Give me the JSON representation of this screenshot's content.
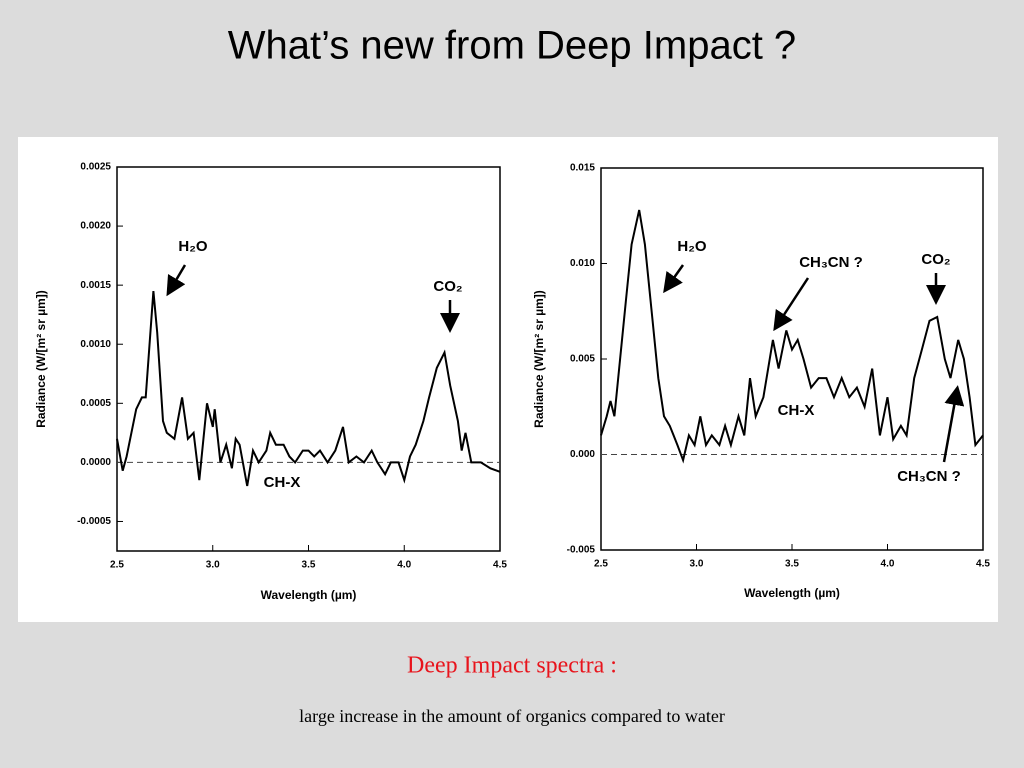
{
  "slide": {
    "title": "What’s new from Deep Impact ?",
    "caption": "Deep Impact spectra :",
    "subcaption": "large increase in the amount of organics compared to water"
  },
  "chart_data": [
    {
      "type": "line",
      "xlabel": "Wavelength (µm)",
      "ylabel": "Radiance (W/[m² sr µm])",
      "color": "#000000",
      "xlim": [
        2.5,
        4.5
      ],
      "xticks": [
        2.5,
        {
          "value": 3,
          "label": "3.0"
        },
        3.5,
        {
          "value": 4,
          "label": "4.0"
        },
        4.5
      ],
      "ylim": [
        -0.00075,
        0.0025
      ],
      "yticks": [
        {
          "value": -0.0005,
          "label": "-0.0005"
        },
        {
          "value": 0,
          "label": "0.0000"
        },
        0.0005,
        {
          "value": 0.001,
          "label": "0.0010"
        },
        0.0015,
        {
          "value": 0.002,
          "label": "0.0020"
        },
        0.0025
      ],
      "reference_line": 0,
      "annotations": [
        "H₂O",
        "CO₂",
        "CH-X"
      ],
      "x": [
        2.5,
        2.53,
        2.55,
        2.6,
        2.63,
        2.65,
        2.69,
        2.71,
        2.74,
        2.76,
        2.8,
        2.84,
        2.87,
        2.9,
        2.93,
        2.97,
        3.0,
        3.01,
        3.04,
        3.07,
        3.1,
        3.12,
        3.14,
        3.18,
        3.21,
        3.24,
        3.28,
        3.3,
        3.33,
        3.37,
        3.4,
        3.43,
        3.47,
        3.5,
        3.53,
        3.56,
        3.6,
        3.64,
        3.68,
        3.71,
        3.75,
        3.79,
        3.83,
        3.86,
        3.9,
        3.93,
        3.97,
        4.0,
        4.03,
        4.06,
        4.1,
        4.13,
        4.17,
        4.21,
        4.24,
        4.28,
        4.3,
        4.32,
        4.35,
        4.4,
        4.45,
        4.5
      ],
      "values": [
        0.0002,
        -7e-05,
        5e-05,
        0.00045,
        0.00055,
        0.00055,
        0.00145,
        0.0011,
        0.00035,
        0.00025,
        0.0002,
        0.00055,
        0.0002,
        0.00025,
        -0.00015,
        0.0005,
        0.0003,
        0.00045,
        0,
        0.00015,
        -5e-05,
        0.0002,
        0.00015,
        -0.0002,
        0.0001,
        0,
        0.0001,
        0.00025,
        0.00015,
        0.00015,
        5e-05,
        0,
        0.0001,
        0.0001,
        5e-05,
        0.0001,
        0,
        0.0001,
        0.0003,
        0,
        5e-05,
        0,
        0.0001,
        0,
        -0.0001,
        0,
        0,
        -0.00015,
        5e-05,
        0.00015,
        0.00035,
        0.00055,
        0.0008,
        0.00093,
        0.00065,
        0.00035,
        0.0001,
        0.00025,
        0,
        0,
        -5e-05,
        -8e-05
      ]
    },
    {
      "type": "line",
      "xlabel": "Wavelength (µm)",
      "ylabel": "Radiance (W/[m² sr µm])",
      "color": "#000000",
      "xlim": [
        2.5,
        4.5
      ],
      "xticks": [
        2.5,
        {
          "value": 3,
          "label": "3.0"
        },
        3.5,
        {
          "value": 4,
          "label": "4.0"
        },
        4.5
      ],
      "ylim": [
        -0.005,
        0.015
      ],
      "yticks": [
        -0.005,
        {
          "value": 0,
          "label": "0.000"
        },
        0.005,
        {
          "value": 0.01,
          "label": "0.010"
        },
        0.015
      ],
      "reference_line": 0,
      "annotations": [
        "H₂O",
        "CH₃CN ?",
        "CO₂",
        "CH-X",
        "CH₃CN ?"
      ],
      "x": [
        2.5,
        2.53,
        2.55,
        2.57,
        2.6,
        2.63,
        2.66,
        2.7,
        2.73,
        2.77,
        2.8,
        2.83,
        2.86,
        2.88,
        2.9,
        2.93,
        2.96,
        2.99,
        3.02,
        3.05,
        3.08,
        3.12,
        3.15,
        3.18,
        3.22,
        3.25,
        3.28,
        3.31,
        3.35,
        3.4,
        3.43,
        3.47,
        3.5,
        3.53,
        3.56,
        3.6,
        3.64,
        3.68,
        3.72,
        3.76,
        3.8,
        3.84,
        3.88,
        3.92,
        3.96,
        4.0,
        4.03,
        4.07,
        4.1,
        4.14,
        4.18,
        4.22,
        4.26,
        4.3,
        4.33,
        4.37,
        4.4,
        4.43,
        4.46,
        4.5
      ],
      "values": [
        0.001,
        0.002,
        0.0028,
        0.002,
        0.005,
        0.008,
        0.011,
        0.0128,
        0.011,
        0.007,
        0.004,
        0.002,
        0.0015,
        0.001,
        0.0005,
        -0.0003,
        0.001,
        0.0005,
        0.002,
        0.0005,
        0.001,
        0.0005,
        0.0015,
        0.0005,
        0.002,
        0.001,
        0.004,
        0.002,
        0.003,
        0.006,
        0.0045,
        0.0065,
        0.0055,
        0.006,
        0.005,
        0.0035,
        0.004,
        0.004,
        0.003,
        0.004,
        0.003,
        0.0035,
        0.0025,
        0.0045,
        0.001,
        0.003,
        0.0008,
        0.0015,
        0.001,
        0.004,
        0.0055,
        0.007,
        0.0072,
        0.005,
        0.004,
        0.006,
        0.005,
        0.003,
        0.0005,
        0.001
      ]
    }
  ]
}
